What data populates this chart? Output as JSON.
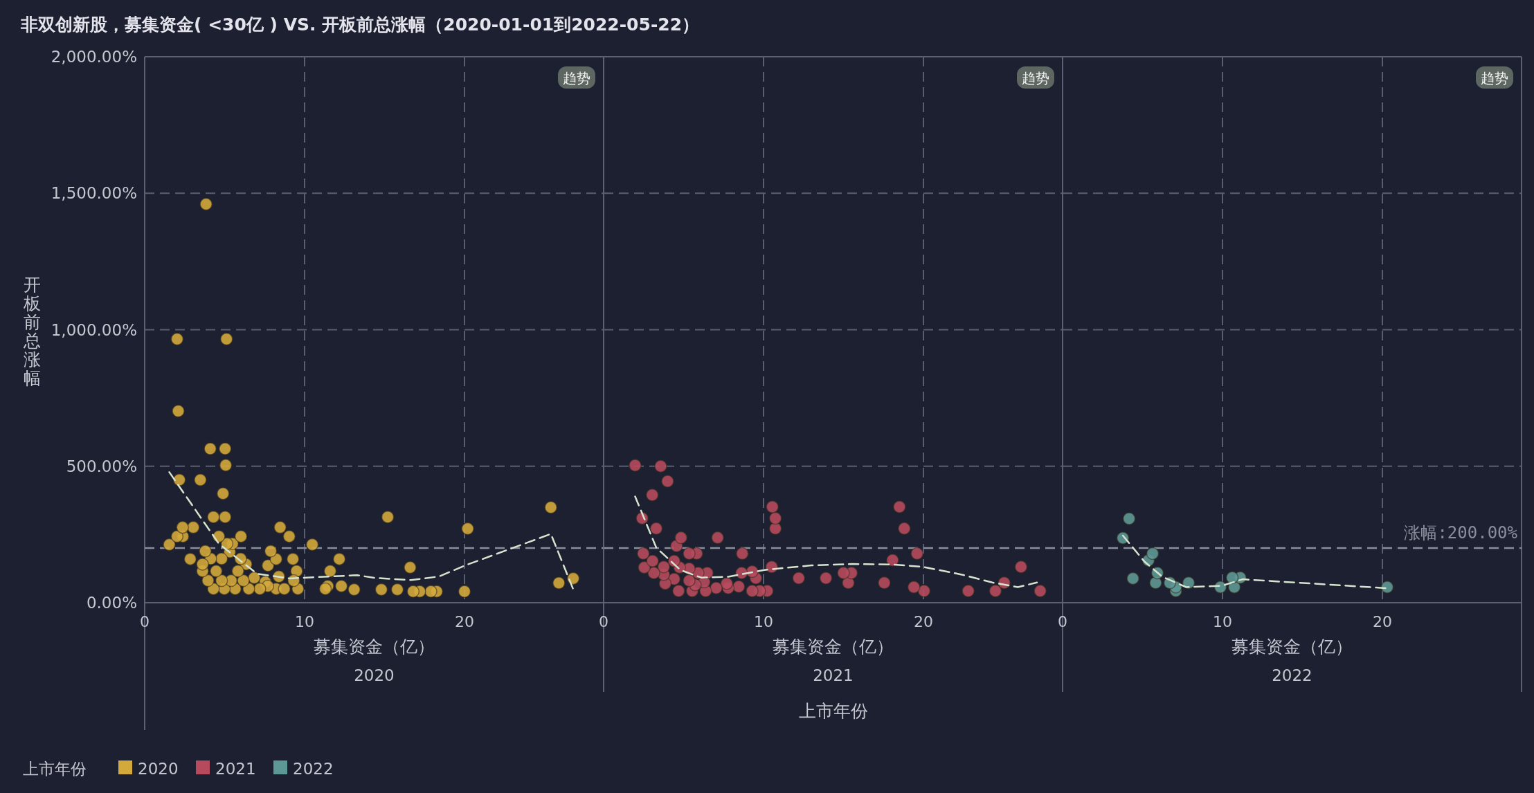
{
  "chart_data": [
    {
      "type": "scatter",
      "title": "非双创新股，募集资金( <30亿 ) VS. 开板前总涨幅（2020-01-01到2022-05-22）",
      "subtitle": "2020",
      "xlabel": "募集资金（亿）",
      "ylabel": "开板前总涨幅",
      "legend_title": "上市年份",
      "legend": "bottom left",
      "grid": true,
      "xlim": [
        0,
        28.7
      ],
      "xticks": [
        0,
        10,
        20
      ],
      "ylim": [
        0,
        2000
      ],
      "yticks": [
        {
          "value": 0,
          "label": "0.00%"
        },
        {
          "value": 500,
          "label": "500.00%"
        },
        {
          "value": 1000,
          "label": "1,000.00%"
        },
        {
          "value": 1500,
          "label": "1,500.00%"
        },
        {
          "value": 2000,
          "label": "2,000.00%"
        }
      ],
      "ref_lines": [
        {
          "axis": "y",
          "value": 200,
          "color": "#8a8e9c",
          "line_style": "dashed"
        }
      ],
      "annotations": [
        "趋势"
      ],
      "series": [
        {
          "name": "2020",
          "color": "#d4a93c",
          "marker": "circle",
          "x": [
            3.84,
            2.03,
            5.12,
            2.1,
            4.1,
            5.03,
            5.07,
            2.17,
            3.48,
            4.9,
            4.3,
            5.03,
            15.2,
            2.37,
            3.04,
            2.03,
            2.39,
            4.64,
            6.02,
            8.47,
            9.04,
            1.54,
            10.48,
            2.85,
            7.88,
            8.22,
            7.71,
            9.27,
            12.17,
            11.6,
            3.79,
            5.15,
            5.49,
            6.0,
            3.62,
            4.13,
            4.81,
            5.32,
            3.62,
            4.47,
            5.83,
            6.34,
            3.96,
            4.81,
            5.41,
            6.17,
            6.85,
            4.3,
            4.98,
            5.66,
            6.51,
            7.2,
            7.7,
            8.39,
            8.73,
            9.32,
            9.58,
            9.5,
            7.54,
            8.22,
            11.3,
            11.45,
            12.3,
            13.1,
            14.8,
            15.8,
            20.2,
            16.6,
            16.79,
            17.2,
            17.9,
            18.26,
            20.0,
            25.4,
            25.9,
            26.8
          ],
          "values": [
            1460,
            966,
            966,
            702,
            564,
            564,
            504,
            450,
            450,
            400,
            314,
            314,
            314,
            276,
            276,
            243,
            243,
            243,
            243,
            276,
            243,
            213,
            213,
            160,
            189,
            160,
            136,
            160,
            160,
            116,
            189,
            216,
            216,
            161,
            141,
            161,
            161,
            186,
            116,
            116,
            116,
            141,
            81,
            81,
            81,
            81,
            91,
            51,
            51,
            51,
            51,
            51,
            61,
            96,
            51,
            81,
            51,
            116,
            76,
            51,
            51,
            61,
            61,
            48,
            48,
            48,
            271,
            129,
            41,
            41,
            41,
            41,
            41,
            349,
            72,
            89
          ]
        },
        {
          "type": "line",
          "color": "#d6e4cf",
          "line_style": "dashed",
          "x": [
            1.54,
            4.64,
            7.03,
            9.07,
            13.3,
            14.35,
            16.65,
            18.4,
            20.1,
            25.4,
            26.8
          ],
          "values": [
            478,
            216,
            106,
            89,
            101,
            91,
            83,
            96,
            138,
            252,
            49
          ]
        }
      ]
    },
    {
      "type": "scatter",
      "subtitle": "2021",
      "xlabel": "募集资金（亿）",
      "legend": "bottom left",
      "grid": true,
      "tick_labels": "x",
      "xlim": [
        0,
        28.7
      ],
      "xticks": [
        0,
        10,
        20
      ],
      "ylim": [
        0,
        2000
      ],
      "yticks": [
        {
          "value": 0,
          "label": null
        },
        {
          "value": 500,
          "label": null
        },
        {
          "value": 1000,
          "label": null
        },
        {
          "value": 1500,
          "label": null
        },
        {
          "value": 2000,
          "label": null
        }
      ],
      "ref_lines": [
        {
          "axis": "y",
          "value": 200,
          "color": "#8a8e9c",
          "line_style": "dashed"
        }
      ],
      "annotations": [
        "趋势",
        "上市年份"
      ],
      "series": [
        {
          "name": "2021",
          "color": "#b84a5e",
          "marker": "circle",
          "x": [
            1.97,
            3.57,
            4.0,
            3.04,
            2.41,
            3.29,
            4.84,
            7.13,
            4.56,
            10.55,
            10.74,
            10.74,
            18.5,
            18.8,
            2.48,
            5.35,
            5.82,
            8.67,
            19.6,
            3.06,
            2.54,
            3.14,
            3.76,
            4.41,
            4.75,
            3.76,
            3.85,
            4.41,
            4.69,
            5.35,
            5.91,
            6.48,
            5.35,
            5.73,
            5.54,
            6.29,
            6.38,
            7.04,
            7.7,
            7.79,
            8.45,
            8.63,
            9.29,
            9.52,
            9.29,
            9.76,
            10.23,
            10.51,
            12.2,
            13.9,
            15.0,
            15.5,
            15.3,
            18.07,
            17.55,
            19.4,
            20.04,
            22.8,
            24.5,
            25.05,
            26.1,
            27.3
          ],
          "values": [
            503,
            500,
            445,
            395,
            309,
            272,
            238,
            238,
            208,
            351,
            309,
            272,
            351,
            272,
            180,
            180,
            180,
            180,
            180,
            153,
            129,
            109,
            131,
            153,
            129,
            103,
            70,
            87,
            43,
            125,
            109,
            109,
            81,
            65,
            43,
            76,
            43,
            54,
            70,
            54,
            59,
            109,
            114,
            90,
            43,
            43,
            43,
            131,
            90,
            90,
            109,
            109,
            73,
            156,
            73,
            57,
            43,
            43,
            43,
            73,
            131,
            43
          ]
        },
        {
          "type": "line",
          "color": "#d6e4cf",
          "line_style": "dashed",
          "x": [
            1.97,
            3.29,
            4.79,
            6.1,
            7.79,
            10.04,
            13.0,
            15.5,
            18.1,
            20.0,
            22.4,
            24.3,
            25.9,
            27.1
          ],
          "values": [
            389,
            202,
            120,
            92,
            95,
            120,
            137,
            142,
            140,
            131,
            103,
            74,
            57,
            74
          ]
        }
      ]
    },
    {
      "type": "scatter",
      "subtitle": "2022",
      "xlabel": "募集资金（亿）",
      "legend": "bottom left",
      "grid": true,
      "tick_labels": "x",
      "xlim": [
        0,
        28.7
      ],
      "xticks": [
        0,
        10,
        20
      ],
      "ylim": [
        0,
        2000
      ],
      "yticks": [
        {
          "value": 0,
          "label": null
        },
        {
          "value": 500,
          "label": null
        },
        {
          "value": 1000,
          "label": null
        },
        {
          "value": 1500,
          "label": null
        },
        {
          "value": 2000,
          "label": null
        }
      ],
      "ref_lines": [
        {
          "axis": "y",
          "value": 200,
          "label": "涨幅:200.00%",
          "color": "#8a8e9c",
          "line_style": "dashed"
        }
      ],
      "annotations": [
        "趋势"
      ],
      "series": [
        {
          "name": "2022",
          "color": "#5e9896",
          "marker": "circle",
          "x": [
            4.16,
            3.77,
            5.63,
            5.37,
            5.93,
            4.4,
            5.82,
            6.71,
            7.08,
            7.08,
            7.88,
            9.87,
            10.61,
            11.11,
            10.74,
            20.3
          ],
          "values": [
            308,
            237,
            180,
            155,
            109,
            89,
            73,
            73,
            57,
            43,
            73,
            57,
            92,
            92,
            57,
            57
          ]
        },
        {
          "type": "line",
          "color": "#d6e4cf",
          "line_style": "dashed",
          "x": [
            3.77,
            5.13,
            6.24,
            7.73,
            9.96,
            11.26,
            20.28
          ],
          "values": [
            246,
            150,
            95,
            57,
            62,
            86,
            53
          ]
        }
      ]
    }
  ]
}
